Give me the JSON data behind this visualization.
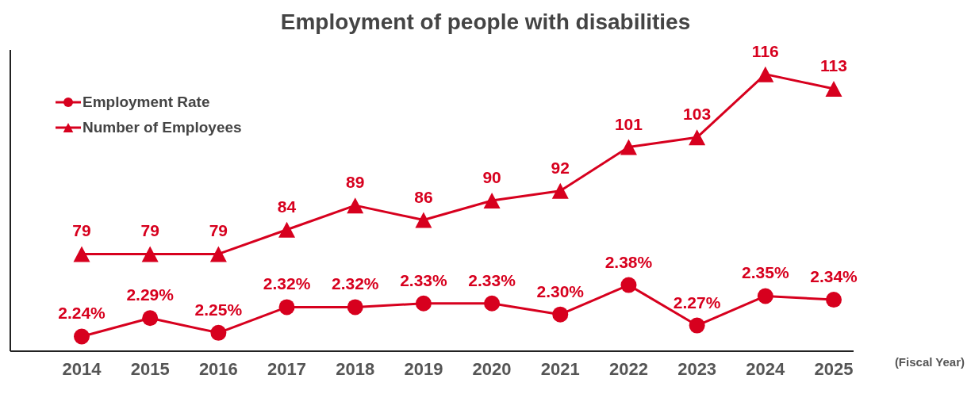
{
  "chart_data": {
    "type": "line",
    "title": "Employment of people with disabilities",
    "xlabel": "(Fiscal Year)",
    "categories": [
      "2014",
      "2015",
      "2016",
      "2017",
      "2018",
      "2019",
      "2020",
      "2021",
      "2022",
      "2023",
      "2024",
      "2025"
    ],
    "series": [
      {
        "name": "Employment Rate",
        "color": "#d7001e",
        "marker": "circle",
        "axis": "y2",
        "values": [
          2.24,
          2.29,
          2.25,
          2.32,
          2.32,
          2.33,
          2.33,
          2.3,
          2.38,
          2.27,
          2.35,
          2.34
        ],
        "value_labels": [
          "2.24%",
          "2.29%",
          "2.25%",
          "2.32%",
          "2.32%",
          "2.33%",
          "2.33%",
          "2.30%",
          "2.38%",
          "2.27%",
          "2.35%",
          "2.34%"
        ]
      },
      {
        "name": "Number of Employees",
        "color": "#d7001e",
        "marker": "triangle",
        "axis": "y",
        "values": [
          79,
          79,
          79,
          84,
          89,
          86,
          90,
          92,
          101,
          103,
          116,
          113
        ],
        "value_labels": [
          "79",
          "79",
          "79",
          "84",
          "89",
          "86",
          "90",
          "92",
          "101",
          "103",
          "116",
          "113"
        ]
      }
    ],
    "ylim": [
      59,
      121
    ],
    "y2lim": [
      2.2,
      3.02
    ],
    "tick_labels": "x",
    "legend": "top left",
    "grid": false,
    "line_style": "solid"
  }
}
